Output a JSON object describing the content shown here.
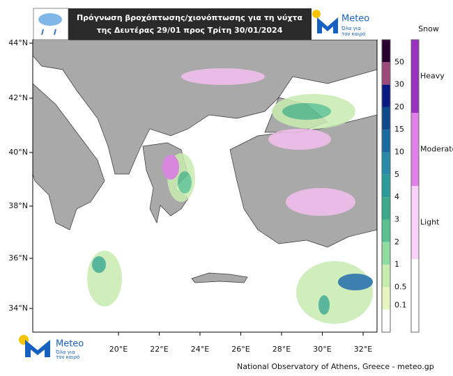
{
  "header": {
    "title_lines": [
      "Πρόγνωση βροχόπτωσης/χιονόπτωσης για τη νύχτα",
      "της Δευτέρας 29/01 προς Τρίτη 30/01/2024"
    ]
  },
  "logo": {
    "name": "Meteo",
    "tagline_lines": [
      "Όλα για",
      "τον καιρό"
    ]
  },
  "map": {
    "lat_labels": [
      "44°N",
      "42°N",
      "40°N",
      "38°N",
      "36°N",
      "34°N"
    ],
    "lon_labels": [
      "20°E",
      "22°E",
      "24°E",
      "26°E",
      "28°E",
      "30°E",
      "32°E"
    ]
  },
  "rain_scale": {
    "labels": [
      "50",
      "30",
      "20",
      "15",
      "10",
      "5",
      "4",
      "3",
      "2",
      "1",
      "0.5",
      "0.1"
    ]
  },
  "snow_scale": {
    "title": "Snow",
    "labels": [
      "Heavy",
      "Moderate",
      "Light"
    ]
  },
  "footer": "National Observatory of Athens, Greece - meteo.gp"
}
